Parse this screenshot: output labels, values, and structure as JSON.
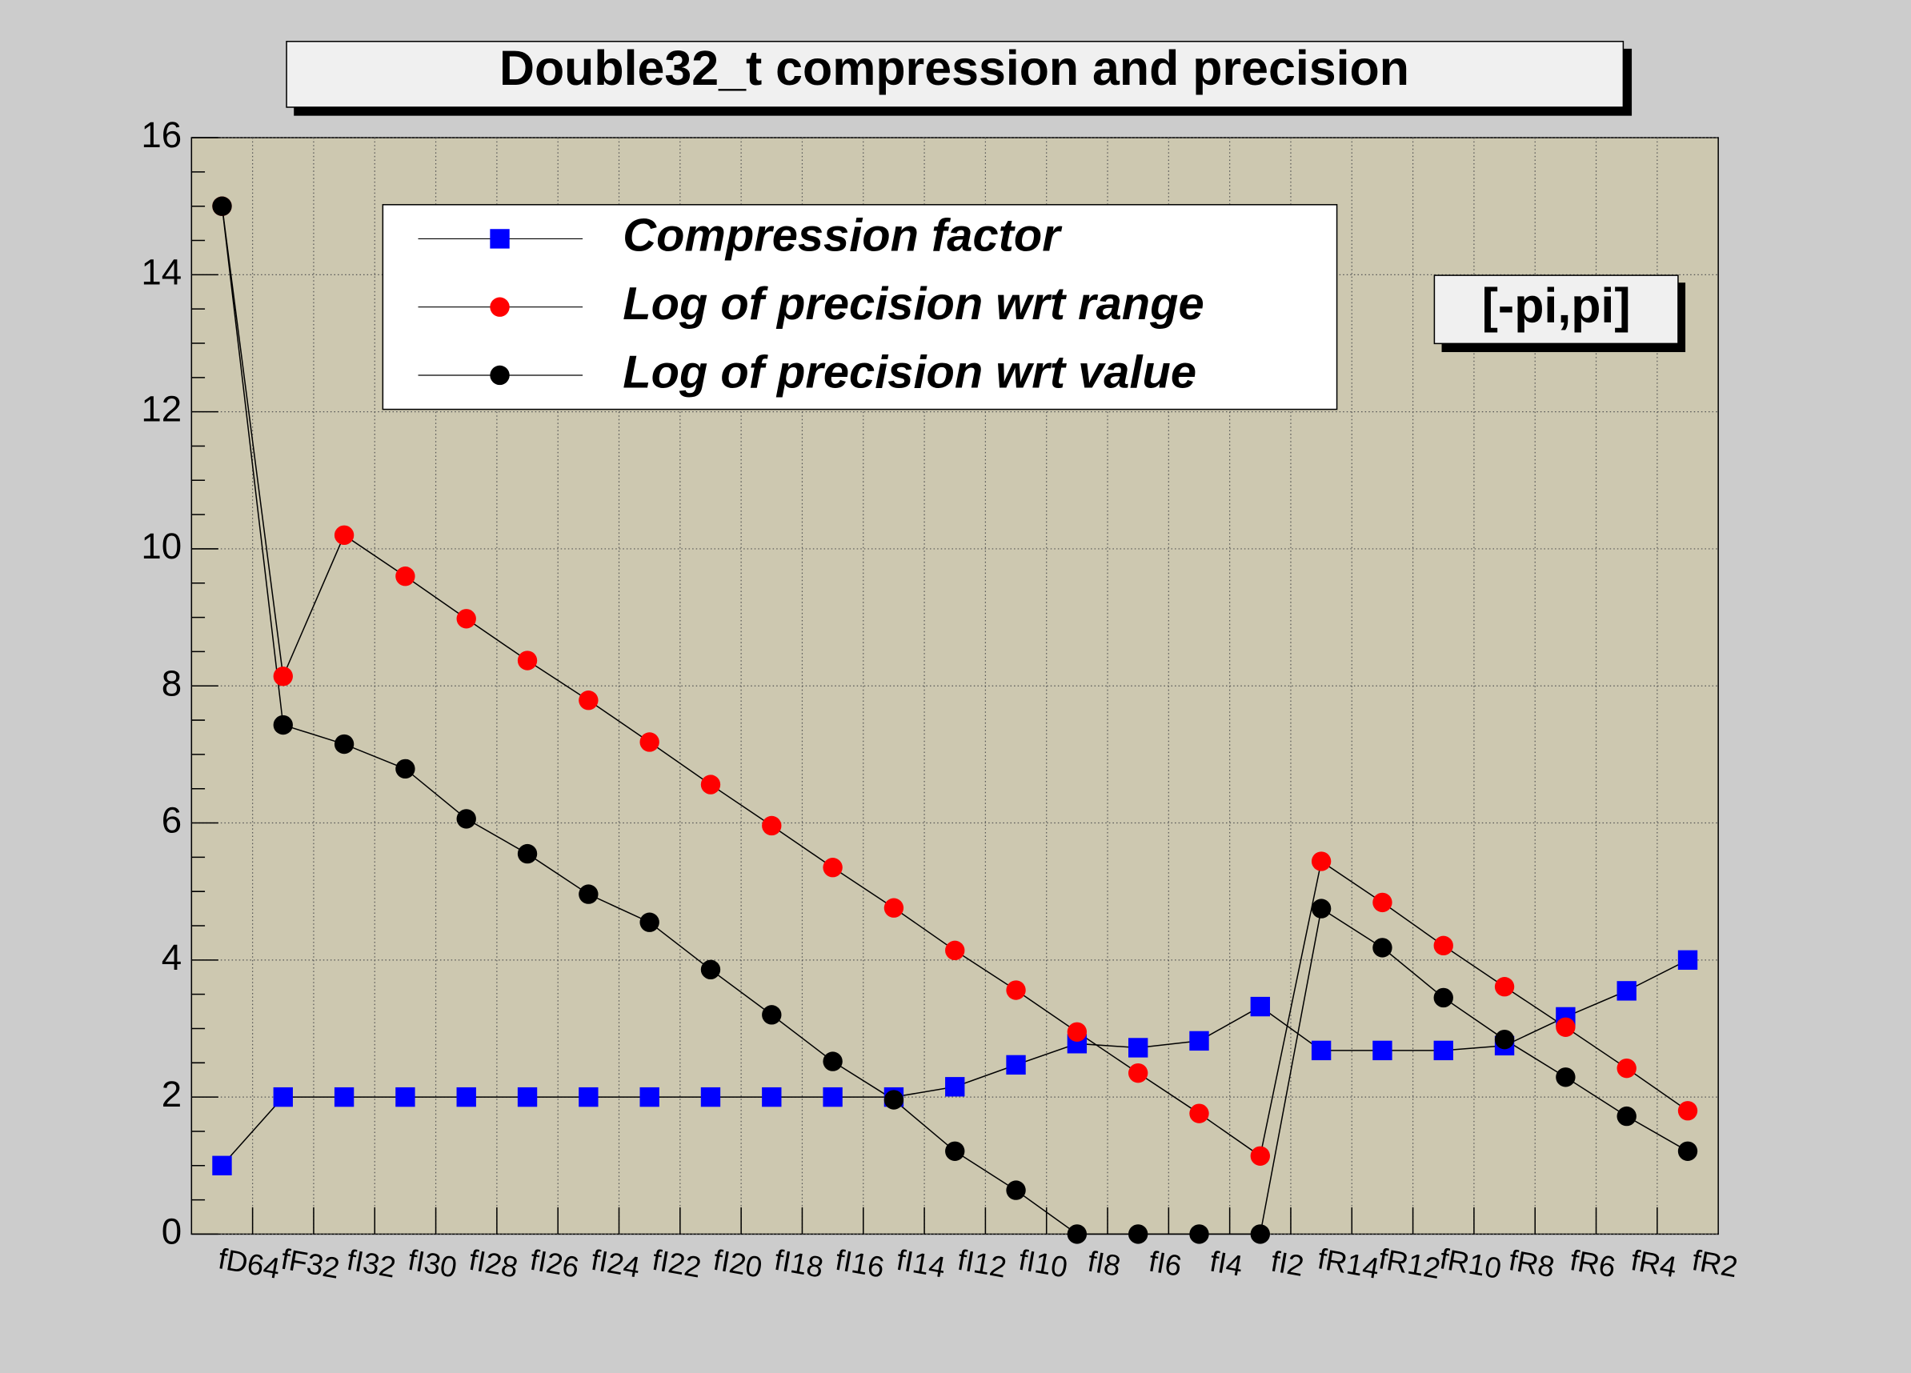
{
  "chart_data": {
    "type": "line",
    "title": "Double32_t compression and precision",
    "annotation": "[-pi,pi]",
    "categories": [
      "fD64",
      "fF32",
      "fI32",
      "fI30",
      "fI28",
      "fI26",
      "fI24",
      "fI22",
      "fI20",
      "fI18",
      "fI16",
      "fI14",
      "fI12",
      "fI10",
      "fI8",
      "fI6",
      "fI4",
      "fI2",
      "fR14",
      "fR12",
      "fR10",
      "fR8",
      "fR6",
      "fR4",
      "fR2"
    ],
    "series": [
      {
        "name": "Compression factor",
        "color": "#0000ff",
        "marker": "square",
        "values": [
          1,
          2,
          2,
          2,
          2,
          2,
          2,
          2,
          2,
          2,
          2,
          2,
          2.15,
          2.47,
          2.78,
          2.72,
          2.82,
          3.32,
          2.68,
          2.68,
          2.68,
          2.75,
          3.17,
          3.55,
          4.0
        ]
      },
      {
        "name": "Log of precision wrt range",
        "color": "#ff0000",
        "marker": "circle",
        "values": [
          15,
          8.14,
          10.2,
          9.6,
          8.98,
          8.37,
          7.79,
          7.18,
          6.56,
          5.96,
          5.35,
          4.76,
          4.14,
          3.56,
          2.95,
          2.35,
          1.76,
          1.14,
          5.44,
          4.84,
          4.21,
          3.61,
          3.02,
          2.42,
          1.8
        ]
      },
      {
        "name": "Log of precision wrt value",
        "color": "#000000",
        "marker": "circle",
        "values": [
          15,
          7.43,
          7.15,
          6.79,
          6.06,
          5.55,
          4.96,
          4.55,
          3.86,
          3.2,
          2.52,
          1.96,
          1.21,
          0.64,
          0,
          0,
          0,
          0,
          4.75,
          4.18,
          3.45,
          2.84,
          2.29,
          1.72,
          1.21
        ]
      }
    ],
    "ylim": [
      0,
      16
    ],
    "yticks": [
      0,
      2,
      4,
      6,
      8,
      10,
      12,
      14,
      16
    ],
    "grid": true
  }
}
